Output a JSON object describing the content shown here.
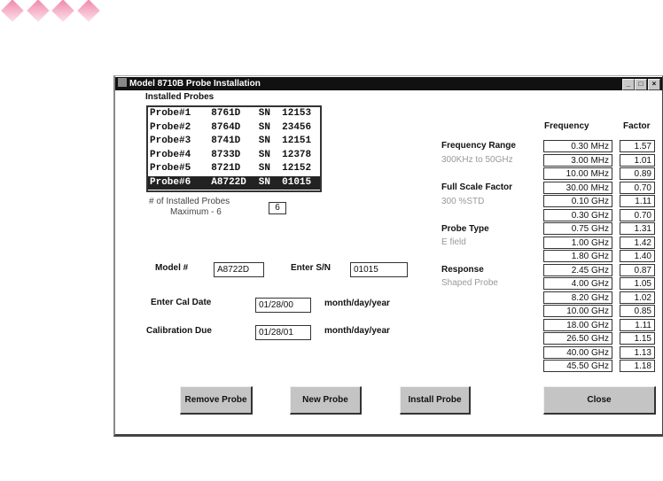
{
  "decor": {
    "diamond_color": "#ee88aa"
  },
  "window": {
    "title": "Model 8710B  Probe Installation",
    "minimize": "_",
    "maximize": "□",
    "close": "×"
  },
  "installed": {
    "label": "Installed Probes",
    "probes": [
      {
        "name": "Probe#1",
        "model": "8761D",
        "sn": "SN  12153",
        "selected": false
      },
      {
        "name": "Probe#2",
        "model": "8764D",
        "sn": "SN  23456",
        "selected": false
      },
      {
        "name": "Probe#3",
        "model": "8741D",
        "sn": "SN  12151",
        "selected": false
      },
      {
        "name": "Probe#4",
        "model": "8733D",
        "sn": "SN  12378",
        "selected": false
      },
      {
        "name": "Probe#5",
        "model": "8721D",
        "sn": "SN  12152",
        "selected": false
      },
      {
        "name": "Probe#6",
        "model": "A8722D",
        "sn": "SN  01015",
        "selected": true
      }
    ],
    "count_label": "# of Installed Probes",
    "max_label": "Maximum - 6",
    "count": "6"
  },
  "form": {
    "model_label": "Model #",
    "model_value": "A8722D",
    "sn_label": "Enter S/N",
    "sn_value": "01015",
    "cal_label": "Enter Cal Date",
    "cal_value": "01/28/00",
    "due_label": "Calibration Due",
    "due_value": "01/28/01",
    "date_hint": "month/day/year"
  },
  "info": {
    "range_label": "Frequency Range",
    "range_value": "300KHz to 50GHz",
    "fsf_label": "Full Scale Factor",
    "fsf_value": "300 %STD",
    "type_label": "Probe Type",
    "type_value": "E field",
    "resp_label": "Response",
    "resp_value": "Shaped Probe"
  },
  "table": {
    "freq_header": "Frequency",
    "factor_header": "Factor",
    "rows": [
      [
        "0.30 MHz",
        "1.57"
      ],
      [
        "3.00 MHz",
        "1.01"
      ],
      [
        "10.00 MHz",
        "0.89"
      ],
      [
        "30.00 MHz",
        "0.70"
      ],
      [
        "0.10 GHz",
        "1.11"
      ],
      [
        "0.30 GHz",
        "0.70"
      ],
      [
        "0.75 GHz",
        "1.31"
      ],
      [
        "1.00 GHz",
        "1.42"
      ],
      [
        "1.80 GHz",
        "1.40"
      ],
      [
        "2.45 GHz",
        "0.87"
      ],
      [
        "4.00 GHz",
        "1.05"
      ],
      [
        "8.20 GHz",
        "1.02"
      ],
      [
        "10.00 GHz",
        "0.85"
      ],
      [
        "18.00 GHz",
        "1.11"
      ],
      [
        "26.50 GHz",
        "1.15"
      ],
      [
        "40.00 GHz",
        "1.13"
      ],
      [
        "45.50 GHz",
        "1.18"
      ]
    ]
  },
  "buttons": {
    "remove": "Remove Probe",
    "new": "New Probe",
    "install": "Install Probe",
    "close": "Close"
  }
}
